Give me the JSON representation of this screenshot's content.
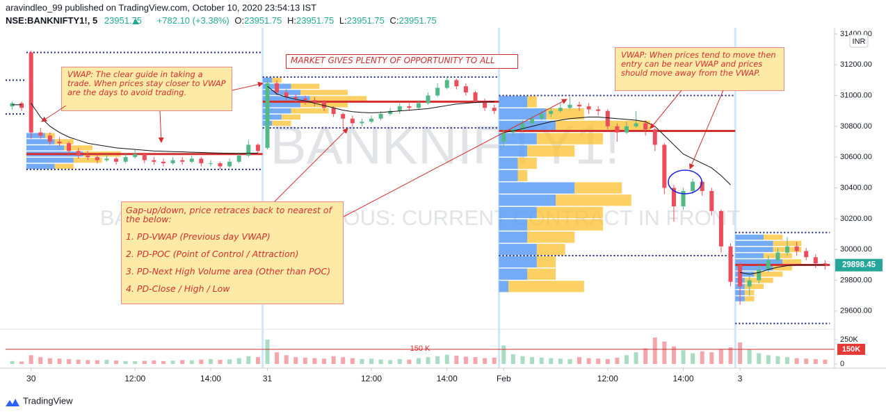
{
  "header": {
    "published": "aravindleo_99 published on TradingView.com, October 10, 2020 23:54:13 IST",
    "symbol": "NSE:BANKNIFTY1!, 5",
    "price": "23951.75",
    "change": "+782.10 (+3.38%)",
    "o_label": "O:",
    "o": "23951.75",
    "h_label": "H:",
    "h": "23951.75",
    "l_label": "L:",
    "l": "23951.75",
    "c_label": "C:",
    "c": "23951.75"
  },
  "footer": {
    "brand": "TradingView"
  },
  "chart_data": {
    "type": "candlestick",
    "watermark": "BANKNIFTY1!",
    "watermark_sub": "BANKNIFTY1! CONTINUOUS: CURRENT CONTRACT IN FRONT",
    "currency": "INR",
    "up_color": "#53b987",
    "down_color": "#eb4d5c",
    "vwap_color": "#111111",
    "x": [
      -2,
      -1,
      0,
      1,
      2,
      3,
      4,
      5,
      6,
      7,
      8,
      9,
      10,
      11,
      12,
      13,
      14,
      15,
      16,
      17,
      18,
      19,
      20,
      21,
      22,
      23,
      24,
      25,
      26,
      27,
      28,
      29,
      30,
      31,
      32,
      33,
      34,
      35,
      36,
      37,
      38,
      39,
      40,
      41,
      42,
      43,
      44,
      45,
      46,
      47,
      48,
      49,
      50,
      51,
      52,
      53,
      54,
      55,
      56,
      57,
      58,
      59,
      60,
      61,
      62,
      63,
      64,
      65,
      66,
      67,
      68,
      69,
      70,
      71,
      72,
      73,
      74,
      75,
      76,
      77,
      78,
      79,
      80,
      81,
      82,
      83,
      84
    ],
    "ohlc": [
      [
        30930,
        30960,
        30910,
        30950
      ],
      [
        30950,
        30960,
        30900,
        30920
      ],
      [
        31280,
        31290,
        30720,
        30760
      ],
      [
        30760,
        30790,
        30720,
        30740
      ],
      [
        30740,
        30760,
        30680,
        30700
      ],
      [
        30700,
        30730,
        30670,
        30690
      ],
      [
        30690,
        30700,
        30620,
        30640
      ],
      [
        30640,
        30660,
        30590,
        30610
      ],
      [
        30610,
        30640,
        30580,
        30600
      ],
      [
        30600,
        30620,
        30560,
        30580
      ],
      [
        30580,
        30620,
        30570,
        30590
      ],
      [
        30590,
        30600,
        30550,
        30570
      ],
      [
        30570,
        30620,
        30560,
        30600
      ],
      [
        30600,
        30650,
        30590,
        30620
      ],
      [
        30620,
        30630,
        30560,
        30580
      ],
      [
        30580,
        30600,
        30550,
        30570
      ],
      [
        30570,
        30590,
        30540,
        30560
      ],
      [
        30560,
        30600,
        30550,
        30580
      ],
      [
        30580,
        30600,
        30550,
        30570
      ],
      [
        30570,
        30610,
        30560,
        30590
      ],
      [
        30590,
        30600,
        30540,
        30560
      ],
      [
        30560,
        30580,
        30540,
        30560
      ],
      [
        30560,
        30570,
        30520,
        30540
      ],
      [
        30540,
        30590,
        30530,
        30570
      ],
      [
        30570,
        30630,
        30560,
        30610
      ],
      [
        30610,
        30710,
        30600,
        30680
      ],
      [
        30680,
        30690,
        30620,
        30640
      ],
      [
        30660,
        31110,
        30650,
        31080
      ],
      [
        31080,
        31100,
        31000,
        31020
      ],
      [
        31020,
        31040,
        30960,
        30990
      ],
      [
        30990,
        31010,
        30950,
        30980
      ],
      [
        30980,
        31000,
        30940,
        30970
      ],
      [
        30970,
        30990,
        30930,
        30960
      ],
      [
        30960,
        30970,
        30900,
        30920
      ],
      [
        30920,
        30930,
        30860,
        30880
      ],
      [
        30880,
        30890,
        30790,
        30850
      ],
      [
        30850,
        30870,
        30800,
        30820
      ],
      [
        30820,
        30850,
        30800,
        30830
      ],
      [
        30830,
        30870,
        30820,
        30850
      ],
      [
        30850,
        30900,
        30840,
        30880
      ],
      [
        30880,
        30920,
        30870,
        30900
      ],
      [
        30900,
        30950,
        30880,
        30930
      ],
      [
        30930,
        30950,
        30900,
        30920
      ],
      [
        30920,
        30970,
        30910,
        30950
      ],
      [
        30950,
        31020,
        30940,
        31000
      ],
      [
        31000,
        31080,
        30990,
        31050
      ],
      [
        31050,
        31120,
        31040,
        31100
      ],
      [
        31100,
        31110,
        31040,
        31060
      ],
      [
        31060,
        31080,
        31000,
        31020
      ],
      [
        31020,
        31030,
        30950,
        30960
      ],
      [
        30960,
        30980,
        30900,
        30920
      ],
      [
        30920,
        30940,
        30880,
        30900
      ],
      [
        30700,
        30780,
        30660,
        30760
      ],
      [
        30760,
        30800,
        30740,
        30780
      ],
      [
        30780,
        30840,
        30770,
        30820
      ],
      [
        30820,
        30870,
        30810,
        30850
      ],
      [
        30850,
        30900,
        30840,
        30880
      ],
      [
        30880,
        30920,
        30860,
        30900
      ],
      [
        30900,
        30950,
        30890,
        30920
      ],
      [
        30920,
        30990,
        30910,
        30940
      ],
      [
        30940,
        30960,
        30900,
        30930
      ],
      [
        30930,
        30950,
        30880,
        30910
      ],
      [
        30910,
        30930,
        30870,
        30900
      ],
      [
        30900,
        30910,
        30780,
        30800
      ],
      [
        30800,
        30820,
        30700,
        30760
      ],
      [
        30760,
        30830,
        30750,
        30800
      ],
      [
        30800,
        30900,
        30790,
        30820
      ],
      [
        30820,
        30840,
        30740,
        30780
      ],
      [
        30780,
        30790,
        30640,
        30680
      ],
      [
        30680,
        30690,
        30360,
        30400
      ],
      [
        30400,
        30420,
        30180,
        30280
      ],
      [
        30280,
        30400,
        30260,
        30380
      ],
      [
        30380,
        30460,
        30360,
        30440
      ],
      [
        30440,
        30450,
        30350,
        30380
      ],
      [
        30380,
        30400,
        30220,
        30250
      ],
      [
        30250,
        30260,
        29980,
        30020
      ],
      [
        30020,
        30040,
        29760,
        29790
      ],
      [
        29900,
        29920,
        29640,
        29760
      ],
      [
        29760,
        29830,
        29700,
        29800
      ],
      [
        29800,
        29900,
        29780,
        29870
      ],
      [
        29870,
        29960,
        29850,
        29930
      ],
      [
        29930,
        30010,
        29910,
        29980
      ],
      [
        29980,
        30080,
        29960,
        30020
      ],
      [
        30020,
        30050,
        29960,
        29990
      ],
      [
        29990,
        30010,
        29930,
        29950
      ],
      [
        29950,
        29970,
        29880,
        29910
      ],
      [
        29910,
        29930,
        29870,
        29898.45
      ]
    ],
    "vwap": [
      30940,
      30940,
      30950,
      30860,
      30800,
      30760,
      30730,
      30710,
      30690,
      30680,
      30670,
      30660,
      30655,
      30650,
      30645,
      30640,
      30638,
      30636,
      30634,
      30632,
      30630,
      30628,
      30626,
      30625,
      30624,
      30625,
      30626,
      31060,
      31010,
      30990,
      30975,
      30965,
      30950,
      30935,
      30920,
      30905,
      30895,
      30890,
      30888,
      30890,
      30895,
      30900,
      30905,
      30910,
      30915,
      30925,
      30935,
      30945,
      30950,
      30955,
      30958,
      30960,
      30760,
      30770,
      30785,
      30800,
      30815,
      30830,
      30840,
      30850,
      30855,
      30860,
      30860,
      30855,
      30850,
      30845,
      30840,
      30830,
      30800,
      30740,
      30680,
      30620,
      30590,
      30560,
      30530,
      30480,
      30420,
      29850,
      29840,
      29850,
      29870,
      29885,
      29895,
      29900,
      29900,
      29900,
      29900
    ],
    "volume": [
      30000,
      25000,
      90000,
      70000,
      60000,
      55000,
      50000,
      45000,
      40000,
      38000,
      42000,
      35000,
      30000,
      28000,
      32000,
      36000,
      30000,
      34000,
      40000,
      38000,
      45000,
      50000,
      42000,
      48000,
      60000,
      80000,
      70000,
      250000,
      120000,
      90000,
      70000,
      65000,
      60000,
      55000,
      80000,
      70000,
      60000,
      50000,
      55000,
      45000,
      40000,
      50000,
      45000,
      60000,
      70000,
      80000,
      95000,
      85000,
      75000,
      70000,
      60000,
      65000,
      190000,
      100000,
      80000,
      70000,
      65000,
      60000,
      55000,
      50000,
      70000,
      60000,
      55000,
      50000,
      65000,
      90000,
      120000,
      160000,
      270000,
      230000,
      180000,
      140000,
      110000,
      130000,
      120000,
      150000,
      170000,
      220000,
      150000,
      110000,
      90000,
      80000,
      70000,
      60000,
      55000,
      50000,
      45000
    ],
    "xlim": [
      -2.7,
      85
    ],
    "ylim": [
      29500,
      31440
    ],
    "yticks": [
      {
        "value": 29600,
        "label": "29600.00"
      },
      {
        "value": 29800,
        "label": "29800.00"
      },
      {
        "value": 30000,
        "label": "30000.00"
      },
      {
        "value": 30200,
        "label": "30200.00"
      },
      {
        "value": 30400,
        "label": "30400.00"
      },
      {
        "value": 30600,
        "label": "30600.00"
      },
      {
        "value": 30800,
        "label": "30800.00"
      },
      {
        "value": 31000,
        "label": "31000.00"
      },
      {
        "value": 31200,
        "label": "31200.00"
      },
      {
        "value": 31400,
        "label": "31400.00"
      }
    ],
    "xticks": [
      {
        "value": 0,
        "label": "30"
      },
      {
        "value": 11,
        "label": "12:00"
      },
      {
        "value": 19,
        "label": "14:00"
      },
      {
        "value": 25,
        "label": "31"
      },
      {
        "value": 36,
        "label": "12:00"
      },
      {
        "value": 44,
        "label": "14:00"
      },
      {
        "value": 50,
        "label": "Feb"
      },
      {
        "value": 61,
        "label": "12:00"
      },
      {
        "value": 69,
        "label": "14:00"
      },
      {
        "value": 75,
        "label": "3"
      }
    ],
    "volume_ylim": [
      0,
      320000
    ],
    "volume_ticks": [
      0,
      {
        "value": 250000,
        "label": "250K"
      }
    ],
    "volume_marker": {
      "value": 150000,
      "label": "150 K",
      "axis_label": "150K"
    },
    "ranges": [
      {
        "start": -2,
        "end": -1,
        "high": 31100,
        "low": 30880
      },
      {
        "start": 0,
        "end": 24,
        "high": 31280,
        "low": 30520
      },
      {
        "start": 25,
        "end": 49,
        "high": 31120,
        "low": 30790
      },
      {
        "start": 50,
        "end": 74,
        "high": 31000,
        "low": 29960
      },
      {
        "start": 75,
        "end": 84,
        "high": 30110,
        "low": 29520
      }
    ],
    "profiles": [
      {
        "start": 0,
        "end": 24,
        "poc": 30620,
        "rows": [
          [
            30740,
            2,
            1
          ],
          [
            30700,
            3,
            2
          ],
          [
            30660,
            4,
            3
          ],
          [
            30620,
            6,
            4
          ],
          [
            30580,
            5,
            3
          ],
          [
            30540,
            3,
            2
          ]
        ]
      },
      {
        "start": 25,
        "end": 49,
        "poc": 30960,
        "rows": [
          [
            31100,
            1,
            1
          ],
          [
            31060,
            3,
            3
          ],
          [
            31020,
            4,
            5
          ],
          [
            30980,
            5,
            6
          ],
          [
            30940,
            4,
            5
          ],
          [
            30900,
            3,
            4
          ],
          [
            30860,
            2,
            2
          ],
          [
            30820,
            1,
            2
          ]
        ]
      },
      {
        "start": 50,
        "end": 74,
        "poc": 30770,
        "rows": [
          [
            30960,
            3,
            1
          ],
          [
            30880,
            5,
            4
          ],
          [
            30800,
            6,
            10
          ],
          [
            30720,
            4,
            7
          ],
          [
            30640,
            3,
            5
          ],
          [
            30560,
            2,
            2
          ],
          [
            30480,
            2,
            1
          ],
          [
            30400,
            8,
            5
          ],
          [
            30320,
            6,
            8
          ],
          [
            30240,
            4,
            7
          ],
          [
            30160,
            3,
            8
          ],
          [
            30080,
            3,
            5
          ],
          [
            30000,
            4,
            3
          ],
          [
            29920,
            4,
            2
          ],
          [
            29840,
            3,
            3
          ],
          [
            29760,
            1,
            8
          ]
        ]
      },
      {
        "start": 75,
        "end": 84,
        "poc": 29900,
        "rows": [
          [
            30080,
            3,
            2
          ],
          [
            30040,
            4,
            3
          ],
          [
            30000,
            4,
            3
          ],
          [
            29960,
            3,
            3
          ],
          [
            29920,
            5,
            2
          ],
          [
            29880,
            4,
            2
          ],
          [
            29840,
            2,
            3
          ],
          [
            29800,
            1,
            3
          ],
          [
            29760,
            1,
            2
          ],
          [
            29720,
            1,
            1
          ],
          [
            29680,
            1,
            1
          ]
        ]
      }
    ],
    "annotations": {
      "vwap_guide": "VWAP: The clear guide in taking a trade. When prices stay closer to VWAP are the days to avoid trading.",
      "market": "MARKET GIVES PLENTY OF OPPORTUNITY TO ALL",
      "vwap_entry": "VWAP: When prices tend to move then entry can be near VWAP and prices should move away from the VWAP.",
      "gap": [
        "Gap-up/down, price retraces back to nearest of the below:",
        "1. PD-VWAP (Previous day VWAP)",
        "2. PD-POC (Point of Control / Attraction)",
        "3. PD-Next High Volume area (Other than POC)",
        "4. PD-Close / High / Low"
      ]
    }
  }
}
